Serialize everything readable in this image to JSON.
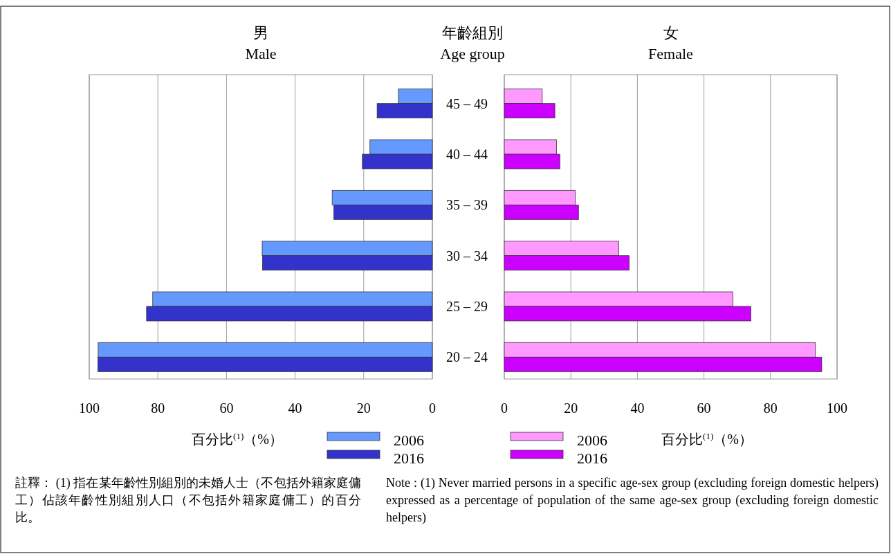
{
  "chart_data": [
    {
      "type": "bar",
      "orientation": "horizontal",
      "title": "男\nMale",
      "ylabel": "年齡組別\nAge group",
      "xlabel": "百分比$^{(1)}$（%）",
      "categories": [
        "45 – 49",
        "40 – 44",
        "35 – 39",
        "30 – 34",
        "25 – 29",
        "20 – 24"
      ],
      "series": [
        {
          "name": "2006",
          "color": "#6699ff",
          "values": [
            9.9,
            18.2,
            29.2,
            49.6,
            81.5,
            97.4
          ]
        },
        {
          "name": "2016",
          "color": "#3333cc",
          "values": [
            16.1,
            20.4,
            28.7,
            49.5,
            83.3,
            97.5
          ]
        }
      ],
      "xlim": [
        100,
        0
      ],
      "xticks": [
        100,
        80,
        60,
        40,
        20,
        0
      ],
      "grid": "x",
      "legend": "bottom",
      "annotations": [
        "註釋： (1) 指在某年齡性別組別的未婚人士（不包括外籍家庭傭工）佔該年齡性別組別人口（不包括外籍家庭傭工）的百分比。"
      ]
    },
    {
      "type": "bar",
      "orientation": "horizontal",
      "title": "女\nFemale",
      "xlabel": "百分比$^{(1)}$（%）",
      "categories": [
        null,
        null,
        null,
        null,
        null,
        null
      ],
      "series": [
        {
          "name": "2006",
          "color": "#ff99ff",
          "values": [
            11.4,
            15.7,
            21.3,
            34.4,
            68.7,
            93.5
          ]
        },
        {
          "name": "2016",
          "color": "#cc00ff",
          "values": [
            15.2,
            16.7,
            22.3,
            37.5,
            74.1,
            95.4
          ]
        }
      ],
      "xlim": [
        0,
        100
      ],
      "xticks": [
        0,
        20,
        40,
        60,
        80,
        100
      ],
      "grid": "x",
      "legend": "bottom",
      "tick_labels": "x",
      "annotations": [
        "Note : (1) Never married persons in a specific age-sex group (excluding foreign domestic helpers) expressed as a percentage of population of the same age-sex group (excluding foreign domestic helpers)"
      ]
    }
  ]
}
